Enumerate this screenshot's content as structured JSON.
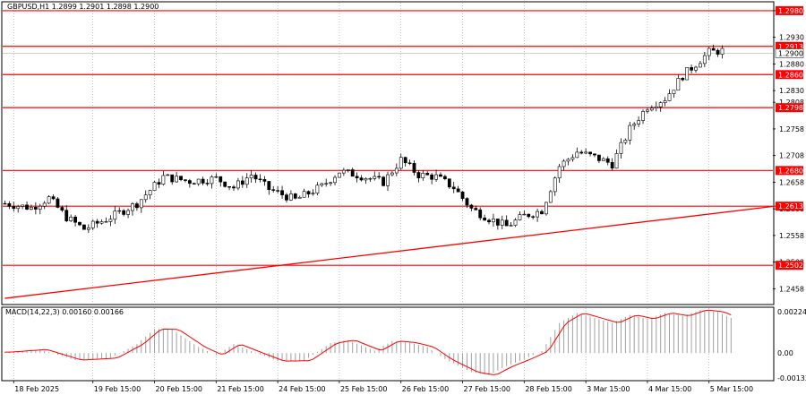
{
  "chart_data": {
    "type": "candlestick",
    "symbol_header": "GBPUSD,H1  1.2899 1.2901 1.2898 1.2900",
    "price_axis": {
      "ylim": [
        1.243,
        1.2995
      ],
      "ticks": [
        "1.2980",
        "1.2930",
        "1.2880",
        "1.2830",
        "1.2808",
        "1.2758",
        "1.2708",
        "1.2658",
        "1.2608",
        "1.2558",
        "1.2508",
        "1.2458"
      ]
    },
    "levels": [
      {
        "value": 1.298,
        "label": "1.2980"
      },
      {
        "value": 1.2913,
        "label": "1.2913"
      },
      {
        "value": 1.286,
        "label": "1.2860"
      },
      {
        "value": 1.2798,
        "label": "1.2798"
      },
      {
        "value": 1.268,
        "label": "1.2680"
      },
      {
        "value": 1.2613,
        "label": "1.2613"
      },
      {
        "value": 1.2502,
        "label": "1.2502"
      }
    ],
    "current_price": {
      "value": 1.29,
      "label": "1.2900"
    },
    "trendline": {
      "start": [
        0,
        1.244
      ],
      "end": [
        177,
        1.2615
      ]
    },
    "x_ticks": [
      {
        "bar": 2,
        "label": "18 Feb 2025"
      },
      {
        "bar": 20,
        "label": "19 Feb 15:00"
      },
      {
        "bar": 34,
        "label": "20 Feb 15:00"
      },
      {
        "bar": 48,
        "label": "21 Feb 15:00"
      },
      {
        "bar": 62,
        "label": "24 Feb 15:00"
      },
      {
        "bar": 76,
        "label": "25 Feb 15:00"
      },
      {
        "bar": 90,
        "label": "26 Feb 15:00"
      },
      {
        "bar": 104,
        "label": "27 Feb 15:00"
      },
      {
        "bar": 118,
        "label": "28 Feb 15:00"
      },
      {
        "bar": 132,
        "label": "3 Mar 15:00"
      },
      {
        "bar": 146,
        "label": "4 Mar 15:00"
      },
      {
        "bar": 160,
        "label": "5 Mar 15:00"
      }
    ],
    "price_path": [
      [
        0,
        1.2618
      ],
      [
        6,
        1.261
      ],
      [
        10,
        1.2628
      ],
      [
        14,
        1.2592
      ],
      [
        18,
        1.257
      ],
      [
        24,
        1.2592
      ],
      [
        30,
        1.2618
      ],
      [
        36,
        1.2668
      ],
      [
        42,
        1.266
      ],
      [
        48,
        1.2665
      ],
      [
        52,
        1.2648
      ],
      [
        56,
        1.2672
      ],
      [
        60,
        1.2645
      ],
      [
        66,
        1.2625
      ],
      [
        72,
        1.265
      ],
      [
        76,
        1.2678
      ],
      [
        80,
        1.2672
      ],
      [
        86,
        1.2658
      ],
      [
        90,
        1.27
      ],
      [
        94,
        1.2672
      ],
      [
        98,
        1.2668
      ],
      [
        102,
        1.2648
      ],
      [
        106,
        1.2608
      ],
      [
        110,
        1.259
      ],
      [
        114,
        1.2575
      ],
      [
        118,
        1.2595
      ],
      [
        122,
        1.2605
      ],
      [
        126,
        1.2688
      ],
      [
        130,
        1.2715
      ],
      [
        134,
        1.2705
      ],
      [
        138,
        1.2692
      ],
      [
        142,
        1.2758
      ],
      [
        146,
        1.28
      ],
      [
        150,
        1.2815
      ],
      [
        154,
        1.2858
      ],
      [
        157,
        1.288
      ],
      [
        160,
        1.2902
      ],
      [
        163,
        1.2905
      ]
    ],
    "macd": {
      "label": "MACD(14,22,3) 0.00160 0.00166",
      "ylim": [
        -0.00133,
        0.00224
      ],
      "ticks": [
        "0.00224",
        "0.00",
        "-0.00133"
      ],
      "path": [
        [
          0,
          5e-05
        ],
        [
          8,
          0.00018
        ],
        [
          16,
          -0.00035
        ],
        [
          24,
          -0.00025
        ],
        [
          30,
          0.00045
        ],
        [
          34,
          0.0012
        ],
        [
          38,
          0.00118
        ],
        [
          44,
          0.0003
        ],
        [
          48,
          -0.0001
        ],
        [
          52,
          0.00045
        ],
        [
          56,
          0.0001
        ],
        [
          62,
          -0.0004
        ],
        [
          68,
          -0.00038
        ],
        [
          74,
          0.0005
        ],
        [
          78,
          0.00065
        ],
        [
          84,
          0.00012
        ],
        [
          88,
          0.0006
        ],
        [
          92,
          0.00052
        ],
        [
          96,
          0.0003
        ],
        [
          100,
          -0.0003
        ],
        [
          106,
          -0.00095
        ],
        [
          110,
          -0.0011
        ],
        [
          114,
          -0.00065
        ],
        [
          118,
          -0.0003
        ],
        [
          122,
          0.0001
        ],
        [
          126,
          0.0015
        ],
        [
          130,
          0.002
        ],
        [
          134,
          0.00175
        ],
        [
          138,
          0.0015
        ],
        [
          142,
          0.0019
        ],
        [
          146,
          0.0017
        ],
        [
          150,
          0.002
        ],
        [
          154,
          0.00185
        ],
        [
          158,
          0.00215
        ],
        [
          162,
          0.00205
        ],
        [
          165,
          0.00175
        ]
      ]
    }
  }
}
